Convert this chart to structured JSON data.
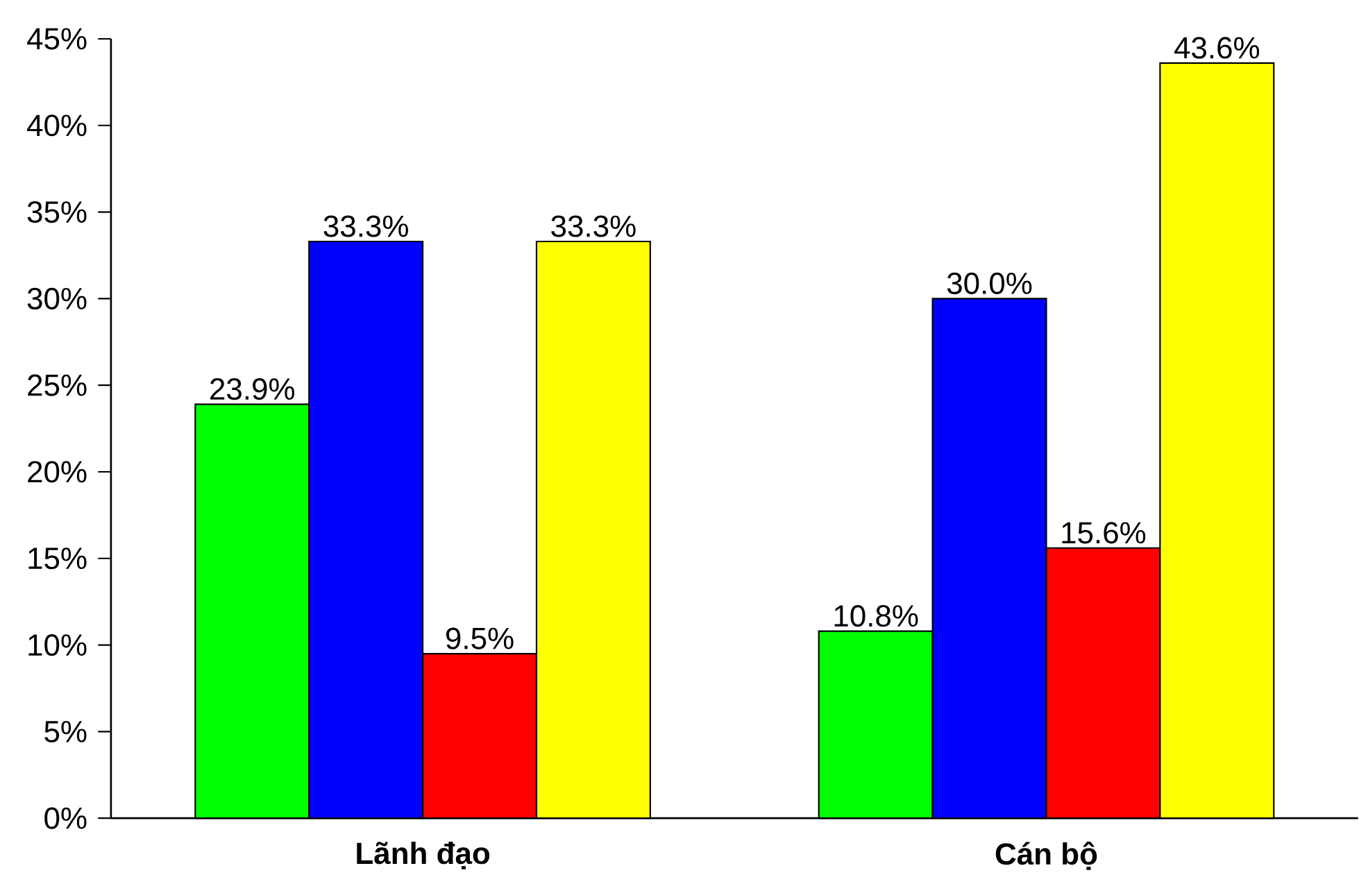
{
  "chart_data": {
    "type": "bar",
    "categories": [
      "Lãnh đạo",
      "Cán bộ"
    ],
    "series": [
      {
        "color": "#00ff00",
        "values": [
          23.9,
          10.8
        ],
        "value_labels": [
          "23.9%",
          "10.8%"
        ]
      },
      {
        "color": "#0000ff",
        "values": [
          33.3,
          30.0
        ],
        "value_labels": [
          "33.3%",
          "30.0%"
        ]
      },
      {
        "color": "#ff0000",
        "values": [
          9.5,
          15.6
        ],
        "value_labels": [
          "9.5%",
          "15.6%"
        ]
      },
      {
        "color": "#ffff00",
        "values": [
          33.3,
          43.6
        ],
        "value_labels": [
          "33.3%",
          "43.6%"
        ]
      }
    ],
    "ylim": [
      0,
      45
    ],
    "yticks": [
      {
        "value": 0,
        "label": "0%"
      },
      {
        "value": 5,
        "label": "5%"
      },
      {
        "value": 10,
        "label": "10%"
      },
      {
        "value": 15,
        "label": "15%"
      },
      {
        "value": 20,
        "label": "20%"
      },
      {
        "value": 25,
        "label": "25%"
      },
      {
        "value": 30,
        "label": "30%"
      },
      {
        "value": 35,
        "label": "35%"
      },
      {
        "value": 40,
        "label": "40%"
      },
      {
        "value": 45,
        "label": "45%"
      }
    ]
  }
}
